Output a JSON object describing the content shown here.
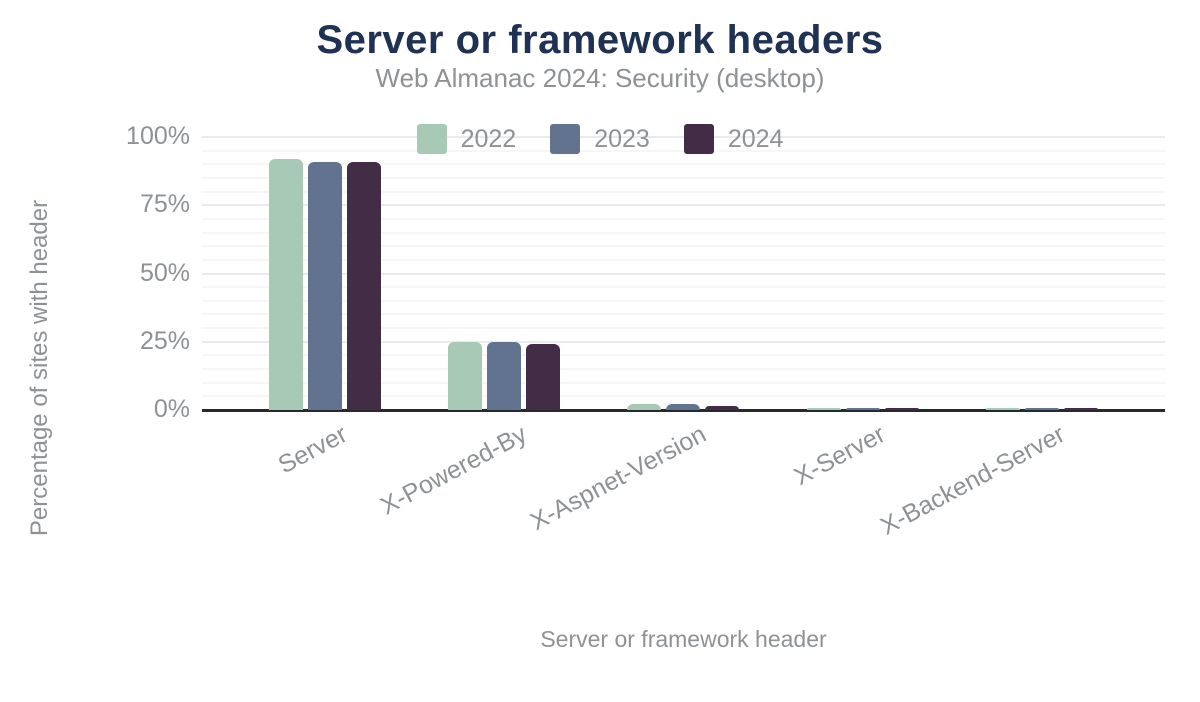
{
  "chart_data": {
    "type": "bar",
    "title": "Server or framework headers",
    "subtitle": "Web Almanac 2024: Security (desktop)",
    "categories": [
      "Server",
      "X-Powered-By",
      "X-Aspnet-Version",
      "X-Server",
      "X-Backend-Server"
    ],
    "series": [
      {
        "name": "2022",
        "color": "#a9c9b7",
        "values": [
          92,
          25,
          2.2,
          0.5,
          0.4
        ]
      },
      {
        "name": "2023",
        "color": "#61738e",
        "values": [
          91,
          25,
          2.2,
          0.5,
          0.4
        ]
      },
      {
        "name": "2024",
        "color": "#432d46",
        "values": [
          91,
          24,
          1.5,
          0.4,
          0.3
        ]
      }
    ],
    "xlabel": "Server or framework header",
    "ylabel": "Percentage of sites with header",
    "ylim": [
      0,
      100
    ],
    "yticks": [
      0,
      25,
      50,
      75,
      100
    ],
    "ytick_labels": [
      "0%",
      "25%",
      "50%",
      "75%",
      "100%"
    ],
    "minor_grid_step": 5,
    "major_grid_step": 25,
    "legend_position": "top",
    "grid": true
  },
  "colors": {
    "background": "#ffffff",
    "title_text": "#203254",
    "muted_text": "#8e9295",
    "axis_line": "#26292d",
    "major_grid": "#e9ebec",
    "minor_grid": "#f5f6f6"
  }
}
